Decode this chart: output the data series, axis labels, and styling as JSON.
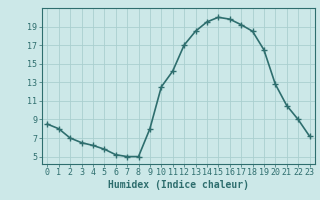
{
  "x": [
    0,
    1,
    2,
    3,
    4,
    5,
    6,
    7,
    8,
    9,
    10,
    11,
    12,
    13,
    14,
    15,
    16,
    17,
    18,
    19,
    20,
    21,
    22,
    23
  ],
  "y": [
    8.5,
    8.0,
    7.0,
    6.5,
    6.2,
    5.8,
    5.2,
    5.0,
    5.0,
    8.0,
    12.5,
    14.2,
    17.0,
    18.5,
    19.5,
    20.0,
    19.8,
    19.2,
    18.5,
    16.5,
    12.8,
    10.5,
    9.0,
    7.2
  ],
  "line_color": "#2e6e6e",
  "marker": "+",
  "marker_size": 4,
  "bg_color": "#cce8e8",
  "grid_color": "#aacfcf",
  "xlabel": "Humidex (Indice chaleur)",
  "xlabel_fontsize": 7,
  "yticks": [
    5,
    7,
    9,
    11,
    13,
    15,
    17,
    19
  ],
  "xticks": [
    0,
    1,
    2,
    3,
    4,
    5,
    6,
    7,
    8,
    9,
    10,
    11,
    12,
    13,
    14,
    15,
    16,
    17,
    18,
    19,
    20,
    21,
    22,
    23
  ],
  "ylim": [
    4.2,
    21.0
  ],
  "xlim": [
    -0.5,
    23.5
  ],
  "tick_fontsize": 6,
  "line_width": 1.2
}
